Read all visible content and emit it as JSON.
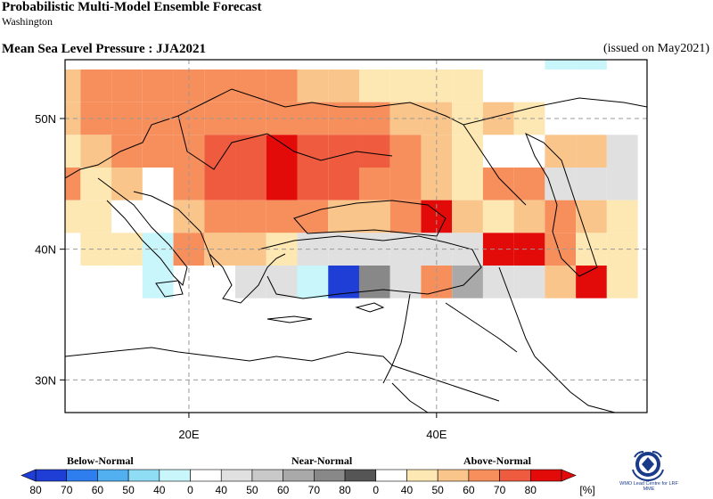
{
  "header": {
    "title": "Probabilistic Multi-Model Ensemble Forecast",
    "subtitle": "Washington",
    "variable_title": "Mean Sea Level Pressure : JJA2021",
    "issued": "(issued on May2021)"
  },
  "axes": {
    "lat_labels": [
      "50N",
      "40N",
      "30N"
    ],
    "lon_labels": [
      "20E",
      "40E"
    ],
    "lat_values": [
      50,
      40,
      30
    ],
    "lon_values": [
      20,
      40
    ],
    "lon_range": [
      10,
      57
    ],
    "lat_range": [
      27.5,
      54.5
    ]
  },
  "legend": {
    "categories": [
      "Below-Normal",
      "Near-Normal",
      "Above-Normal"
    ],
    "tick_labels": [
      "80",
      "70",
      "60",
      "50",
      "40",
      "0",
      "40",
      "50",
      "60",
      "70",
      "80",
      "0",
      "40",
      "50",
      "60",
      "70",
      "80"
    ],
    "unit": "[%]",
    "colors": {
      "below": [
        "#1f3ed6",
        "#2f7ef0",
        "#52b0f0",
        "#8fdcf5",
        "#c9f6fb"
      ],
      "near": [
        "#e0e0e0",
        "#c9c9c9",
        "#a9a9a9",
        "#888888",
        "#555555"
      ],
      "above": [
        "#fde7b2",
        "#f9c58a",
        "#f78f5c",
        "#ef5b3e",
        "#e30a0a"
      ]
    }
  },
  "logo": {
    "text": "WMO Lead Centre for LRF MME",
    "icon": "wmo-logo-icon"
  },
  "chart_data": {
    "type": "heatmap",
    "description_units": "probability of dominant tercile category (%)",
    "categories": [
      "Below-Normal",
      "Near-Normal",
      "Above-Normal"
    ],
    "grid_cell_deg": 2.5,
    "cells": [
      {
        "lon": 10,
        "lat": 52.5,
        "cat": "above",
        "p": 50
      },
      {
        "lon": 12.5,
        "lat": 52.5,
        "cat": "above",
        "p": 60
      },
      {
        "lon": 15,
        "lat": 52.5,
        "cat": "above",
        "p": 60
      },
      {
        "lon": 17.5,
        "lat": 52.5,
        "cat": "above",
        "p": 60
      },
      {
        "lon": 20,
        "lat": 52.5,
        "cat": "above",
        "p": 60
      },
      {
        "lon": 22.5,
        "lat": 52.5,
        "cat": "above",
        "p": 60
      },
      {
        "lon": 25,
        "lat": 52.5,
        "cat": "above",
        "p": 60
      },
      {
        "lon": 27.5,
        "lat": 52.5,
        "cat": "above",
        "p": 60
      },
      {
        "lon": 30,
        "lat": 52.5,
        "cat": "above",
        "p": 50
      },
      {
        "lon": 32.5,
        "lat": 52.5,
        "cat": "above",
        "p": 50
      },
      {
        "lon": 35,
        "lat": 52.5,
        "cat": "above",
        "p": 40
      },
      {
        "lon": 37.5,
        "lat": 52.5,
        "cat": "above",
        "p": 40
      },
      {
        "lon": 40,
        "lat": 52.5,
        "cat": "above",
        "p": 40
      },
      {
        "lon": 42.5,
        "lat": 52.5,
        "cat": "above",
        "p": 40
      },
      {
        "lon": 50,
        "lat": 55,
        "cat": "below",
        "p": 40
      },
      {
        "lon": 52.5,
        "lat": 55,
        "cat": "below",
        "p": 40
      },
      {
        "lon": 10,
        "lat": 50,
        "cat": "above",
        "p": 50
      },
      {
        "lon": 12.5,
        "lat": 50,
        "cat": "above",
        "p": 60
      },
      {
        "lon": 15,
        "lat": 50,
        "cat": "above",
        "p": 60
      },
      {
        "lon": 17.5,
        "lat": 50,
        "cat": "above",
        "p": 60
      },
      {
        "lon": 20,
        "lat": 50,
        "cat": "above",
        "p": 60
      },
      {
        "lon": 22.5,
        "lat": 50,
        "cat": "above",
        "p": 60
      },
      {
        "lon": 25,
        "lat": 50,
        "cat": "above",
        "p": 60
      },
      {
        "lon": 27.5,
        "lat": 50,
        "cat": "above",
        "p": 60
      },
      {
        "lon": 30,
        "lat": 50,
        "cat": "above",
        "p": 60
      },
      {
        "lon": 32.5,
        "lat": 50,
        "cat": "above",
        "p": 60
      },
      {
        "lon": 35,
        "lat": 50,
        "cat": "above",
        "p": 60
      },
      {
        "lon": 37.5,
        "lat": 50,
        "cat": "above",
        "p": 50
      },
      {
        "lon": 40,
        "lat": 50,
        "cat": "above",
        "p": 50
      },
      {
        "lon": 42.5,
        "lat": 50,
        "cat": "above",
        "p": 40
      },
      {
        "lon": 45,
        "lat": 50,
        "cat": "above",
        "p": 50
      },
      {
        "lon": 47.5,
        "lat": 50,
        "cat": "above",
        "p": 40
      },
      {
        "lon": 10,
        "lat": 47.5,
        "cat": "above",
        "p": 40
      },
      {
        "lon": 12.5,
        "lat": 47.5,
        "cat": "above",
        "p": 50
      },
      {
        "lon": 15,
        "lat": 47.5,
        "cat": "above",
        "p": 60
      },
      {
        "lon": 17.5,
        "lat": 47.5,
        "cat": "above",
        "p": 60
      },
      {
        "lon": 20,
        "lat": 47.5,
        "cat": "above",
        "p": 60
      },
      {
        "lon": 22.5,
        "lat": 47.5,
        "cat": "above",
        "p": 70
      },
      {
        "lon": 25,
        "lat": 47.5,
        "cat": "above",
        "p": 70
      },
      {
        "lon": 27.5,
        "lat": 47.5,
        "cat": "above",
        "p": 80
      },
      {
        "lon": 30,
        "lat": 47.5,
        "cat": "above",
        "p": 70
      },
      {
        "lon": 32.5,
        "lat": 47.5,
        "cat": "above",
        "p": 70
      },
      {
        "lon": 35,
        "lat": 47.5,
        "cat": "above",
        "p": 70
      },
      {
        "lon": 37.5,
        "lat": 47.5,
        "cat": "above",
        "p": 60
      },
      {
        "lon": 40,
        "lat": 47.5,
        "cat": "above",
        "p": 50
      },
      {
        "lon": 42.5,
        "lat": 47.5,
        "cat": "above",
        "p": 40
      },
      {
        "lon": 50,
        "lat": 47.5,
        "cat": "above",
        "p": 50
      },
      {
        "lon": 52.5,
        "lat": 47.5,
        "cat": "above",
        "p": 50
      },
      {
        "lon": 55,
        "lat": 47.5,
        "cat": "near",
        "p": 40
      },
      {
        "lon": 10,
        "lat": 45,
        "cat": "above",
        "p": 60
      },
      {
        "lon": 12.5,
        "lat": 45,
        "cat": "above",
        "p": 40
      },
      {
        "lon": 15,
        "lat": 45,
        "cat": "above",
        "p": 50
      },
      {
        "lon": 20,
        "lat": 45,
        "cat": "above",
        "p": 60
      },
      {
        "lon": 22.5,
        "lat": 45,
        "cat": "above",
        "p": 70
      },
      {
        "lon": 25,
        "lat": 45,
        "cat": "above",
        "p": 70
      },
      {
        "lon": 27.5,
        "lat": 45,
        "cat": "above",
        "p": 80
      },
      {
        "lon": 30,
        "lat": 45,
        "cat": "above",
        "p": 70
      },
      {
        "lon": 32.5,
        "lat": 45,
        "cat": "above",
        "p": 70
      },
      {
        "lon": 35,
        "lat": 45,
        "cat": "above",
        "p": 60
      },
      {
        "lon": 37.5,
        "lat": 45,
        "cat": "above",
        "p": 60
      },
      {
        "lon": 40,
        "lat": 45,
        "cat": "above",
        "p": 50
      },
      {
        "lon": 42.5,
        "lat": 45,
        "cat": "above",
        "p": 40
      },
      {
        "lon": 45,
        "lat": 45,
        "cat": "above",
        "p": 60
      },
      {
        "lon": 47.5,
        "lat": 45,
        "cat": "above",
        "p": 60
      },
      {
        "lon": 50,
        "lat": 45,
        "cat": "near",
        "p": 40
      },
      {
        "lon": 52.5,
        "lat": 45,
        "cat": "near",
        "p": 40
      },
      {
        "lon": 55,
        "lat": 45,
        "cat": "near",
        "p": 40
      },
      {
        "lon": 10,
        "lat": 42.5,
        "cat": "above",
        "p": 40
      },
      {
        "lon": 12.5,
        "lat": 42.5,
        "cat": "above",
        "p": 40
      },
      {
        "lon": 20,
        "lat": 42.5,
        "cat": "above",
        "p": 50
      },
      {
        "lon": 22.5,
        "lat": 42.5,
        "cat": "above",
        "p": 60
      },
      {
        "lon": 25,
        "lat": 42.5,
        "cat": "above",
        "p": 60
      },
      {
        "lon": 27.5,
        "lat": 42.5,
        "cat": "above",
        "p": 60
      },
      {
        "lon": 30,
        "lat": 42.5,
        "cat": "above",
        "p": 60
      },
      {
        "lon": 32.5,
        "lat": 42.5,
        "cat": "above",
        "p": 50
      },
      {
        "lon": 35,
        "lat": 42.5,
        "cat": "above",
        "p": 50
      },
      {
        "lon": 37.5,
        "lat": 42.5,
        "cat": "above",
        "p": 60
      },
      {
        "lon": 40,
        "lat": 42.5,
        "cat": "above",
        "p": 80
      },
      {
        "lon": 42.5,
        "lat": 42.5,
        "cat": "above",
        "p": 50
      },
      {
        "lon": 45,
        "lat": 42.5,
        "cat": "above",
        "p": 40
      },
      {
        "lon": 47.5,
        "lat": 42.5,
        "cat": "above",
        "p": 50
      },
      {
        "lon": 50,
        "lat": 42.5,
        "cat": "above",
        "p": 60
      },
      {
        "lon": 52.5,
        "lat": 42.5,
        "cat": "above",
        "p": 50
      },
      {
        "lon": 55,
        "lat": 42.5,
        "cat": "above",
        "p": 40
      },
      {
        "lon": 12.5,
        "lat": 40,
        "cat": "above",
        "p": 40
      },
      {
        "lon": 15,
        "lat": 40,
        "cat": "above",
        "p": 40
      },
      {
        "lon": 17.5,
        "lat": 40,
        "cat": "below",
        "p": 40
      },
      {
        "lon": 20,
        "lat": 40,
        "cat": "above",
        "p": 60
      },
      {
        "lon": 22.5,
        "lat": 40,
        "cat": "above",
        "p": 50
      },
      {
        "lon": 25,
        "lat": 40,
        "cat": "above",
        "p": 50
      },
      {
        "lon": 27.5,
        "lat": 40,
        "cat": "above",
        "p": 40
      },
      {
        "lon": 30,
        "lat": 40,
        "cat": "near",
        "p": 40
      },
      {
        "lon": 32.5,
        "lat": 40,
        "cat": "near",
        "p": 40
      },
      {
        "lon": 35,
        "lat": 40,
        "cat": "near",
        "p": 40
      },
      {
        "lon": 37.5,
        "lat": 40,
        "cat": "near",
        "p": 40
      },
      {
        "lon": 40,
        "lat": 40,
        "cat": "near",
        "p": 40
      },
      {
        "lon": 42.5,
        "lat": 40,
        "cat": "near",
        "p": 40
      },
      {
        "lon": 45,
        "lat": 40,
        "cat": "above",
        "p": 80
      },
      {
        "lon": 47.5,
        "lat": 40,
        "cat": "above",
        "p": 80
      },
      {
        "lon": 50,
        "lat": 40,
        "cat": "above",
        "p": 60
      },
      {
        "lon": 52.5,
        "lat": 40,
        "cat": "above",
        "p": 40
      },
      {
        "lon": 55,
        "lat": 40,
        "cat": "above",
        "p": 40
      },
      {
        "lon": 17.5,
        "lat": 37.5,
        "cat": "below",
        "p": 40
      },
      {
        "lon": 25,
        "lat": 37.5,
        "cat": "near",
        "p": 40
      },
      {
        "lon": 27.5,
        "lat": 37.5,
        "cat": "near",
        "p": 40
      },
      {
        "lon": 30,
        "lat": 37.5,
        "cat": "below",
        "p": 40
      },
      {
        "lon": 32.5,
        "lat": 37.5,
        "cat": "below",
        "p": 80
      },
      {
        "lon": 35,
        "lat": 37.5,
        "cat": "near",
        "p": 70
      },
      {
        "lon": 37.5,
        "lat": 37.5,
        "cat": "near",
        "p": 40
      },
      {
        "lon": 40,
        "lat": 37.5,
        "cat": "above",
        "p": 60
      },
      {
        "lon": 42.5,
        "lat": 37.5,
        "cat": "near",
        "p": 60
      },
      {
        "lon": 45,
        "lat": 37.5,
        "cat": "near",
        "p": 40
      },
      {
        "lon": 47.5,
        "lat": 37.5,
        "cat": "near",
        "p": 40
      },
      {
        "lon": 50,
        "lat": 37.5,
        "cat": "above",
        "p": 50
      },
      {
        "lon": 52.5,
        "lat": 37.5,
        "cat": "above",
        "p": 80
      },
      {
        "lon": 55,
        "lat": 37.5,
        "cat": "above",
        "p": 40
      }
    ]
  }
}
